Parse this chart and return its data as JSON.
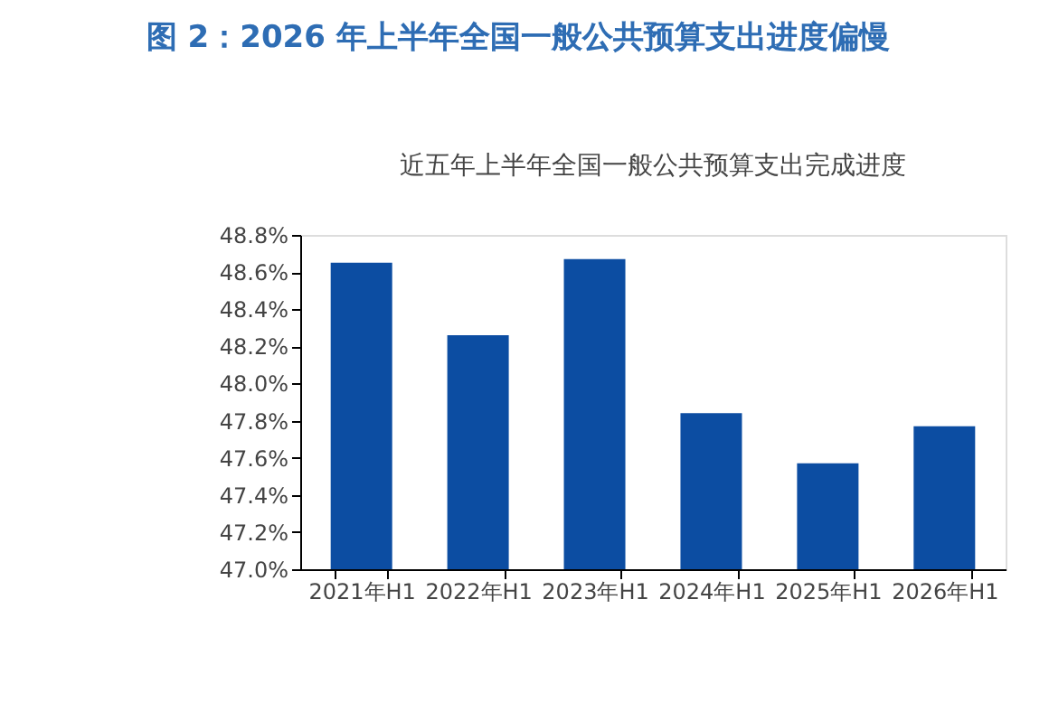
{
  "chart_data": {
    "type": "bar",
    "title": "图 2：2026 年上半年全国一般公共预算支出进度偏慢",
    "subtitle": "近五年上半年全国一般公共预算支出完成进度",
    "categories": [
      "2021年H1",
      "2022年H1",
      "2023年H1",
      "2024年H1",
      "2025年H1",
      "2026年H1"
    ],
    "values": [
      48.65,
      48.26,
      48.67,
      47.84,
      47.57,
      47.77
    ],
    "color": "#0c4da2",
    "ylim": [
      47.0,
      48.8
    ],
    "yticks": [
      {
        "value": 47.0,
        "label": "47.0%"
      },
      {
        "value": 47.2,
        "label": "47.2%"
      },
      {
        "value": 47.4,
        "label": "47.4%"
      },
      {
        "value": 47.6,
        "label": "47.6%"
      },
      {
        "value": 47.8,
        "label": "47.8%"
      },
      {
        "value": 48.0,
        "label": "48.0%"
      },
      {
        "value": 48.2,
        "label": "48.2%"
      },
      {
        "value": 48.4,
        "label": "48.4%"
      },
      {
        "value": 48.6,
        "label": "48.6%"
      },
      {
        "value": 48.8,
        "label": "48.8%"
      }
    ],
    "grid": false
  }
}
